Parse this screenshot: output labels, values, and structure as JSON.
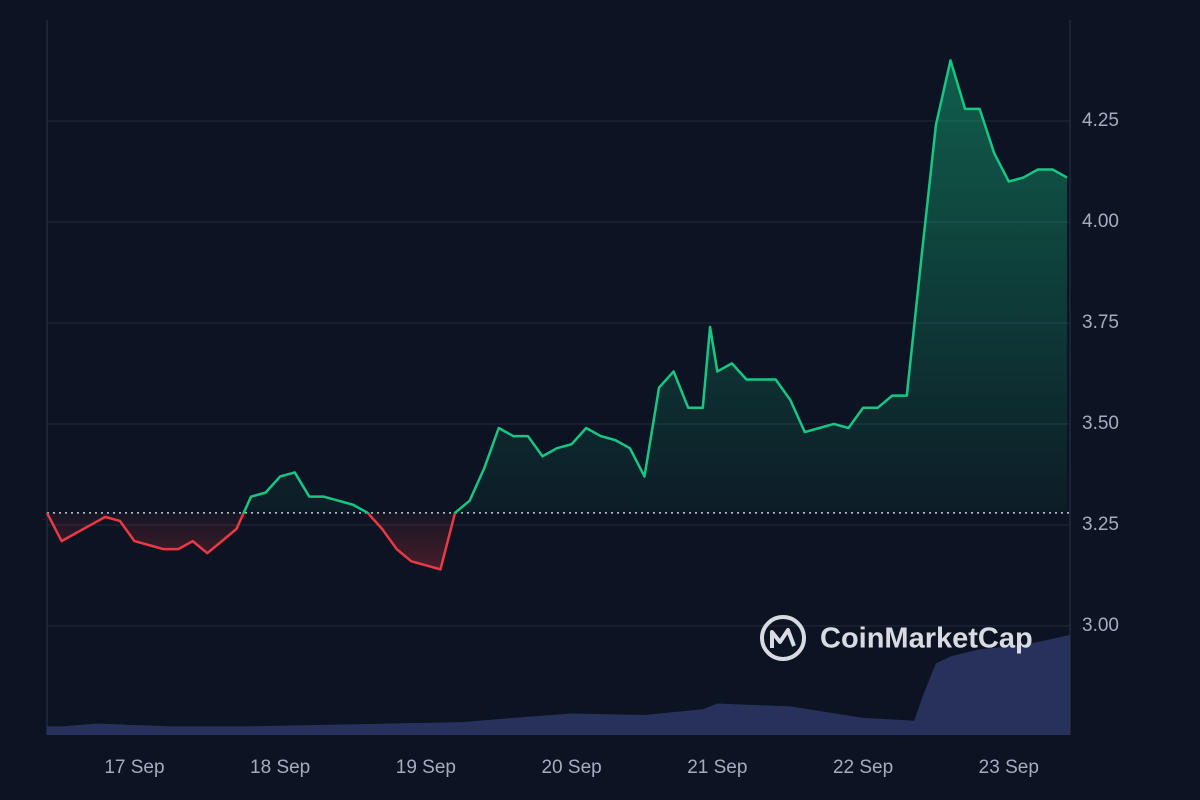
{
  "chart_data": {
    "type": "line",
    "x": [
      16.4,
      16.5,
      16.6,
      16.7,
      16.8,
      16.9,
      17.0,
      17.1,
      17.2,
      17.3,
      17.4,
      17.5,
      17.6,
      17.7,
      17.8,
      17.9,
      18.0,
      18.1,
      18.2,
      18.3,
      18.4,
      18.5,
      18.6,
      18.7,
      18.8,
      18.9,
      19.0,
      19.1,
      19.2,
      19.3,
      19.4,
      19.5,
      19.6,
      19.7,
      19.8,
      19.9,
      20.0,
      20.1,
      20.2,
      20.3,
      20.4,
      20.5,
      20.6,
      20.7,
      20.8,
      20.9,
      20.95,
      21.0,
      21.1,
      21.2,
      21.3,
      21.4,
      21.5,
      21.6,
      21.7,
      21.8,
      21.9,
      22.0,
      22.1,
      22.2,
      22.3,
      22.4,
      22.5,
      22.6,
      22.7,
      22.8,
      22.9,
      23.0,
      23.1,
      23.2,
      23.3,
      23.4
    ],
    "series": [
      {
        "values": [
          3.28,
          3.21,
          3.23,
          3.25,
          3.27,
          3.26,
          3.21,
          3.2,
          3.19,
          3.19,
          3.21,
          3.18,
          3.21,
          3.24,
          3.32,
          3.33,
          3.37,
          3.38,
          3.32,
          3.32,
          3.31,
          3.3,
          3.28,
          3.24,
          3.19,
          3.16,
          3.15,
          3.14,
          3.28,
          3.31,
          3.39,
          3.49,
          3.47,
          3.47,
          3.42,
          3.44,
          3.45,
          3.49,
          3.47,
          3.46,
          3.44,
          3.37,
          3.59,
          3.63,
          3.54,
          3.54,
          3.74,
          3.63,
          3.65,
          3.61,
          3.61,
          3.61,
          3.56,
          3.48,
          3.49,
          3.5,
          3.49,
          3.54,
          3.54,
          3.57,
          3.57,
          3.91,
          4.24,
          4.4,
          4.28,
          4.28,
          4.17,
          4.1,
          4.11,
          4.13,
          4.13,
          4.11
        ],
        "up_color": "#16c784",
        "down_color": "#ea3943"
      }
    ],
    "baseline": 3.28,
    "volume": {
      "x": [
        16.4,
        16.5,
        16.75,
        17.25,
        17.75,
        18.25,
        18.75,
        19.25,
        19.6,
        20.0,
        20.5,
        20.9,
        21.0,
        21.5,
        22.0,
        22.35,
        22.42,
        22.5,
        22.6,
        22.8,
        23.0,
        23.2,
        23.42
      ],
      "values": [
        6,
        6,
        8,
        6,
        6,
        7,
        8,
        9,
        12,
        15,
        14,
        18,
        22,
        20,
        12,
        10,
        30,
        50,
        55,
        60,
        62,
        65,
        70
      ],
      "ylim": [
        0,
        100
      ],
      "color": "#2a3563"
    },
    "xlim": [
      16.4,
      23.42
    ],
    "xticks": [
      {
        "value": 17,
        "label": "17 Sep"
      },
      {
        "value": 18,
        "label": "18 Sep"
      },
      {
        "value": 19,
        "label": "19 Sep"
      },
      {
        "value": 20,
        "label": "20 Sep"
      },
      {
        "value": 21,
        "label": "21 Sep"
      },
      {
        "value": 22,
        "label": "22 Sep"
      },
      {
        "value": 23,
        "label": "23 Sep"
      }
    ],
    "ylim": [
      2.73,
      4.5
    ],
    "yticks": [
      {
        "value": 3,
        "label": "3.00"
      },
      {
        "value": 3.25,
        "label": "3.25"
      },
      {
        "value": 3.5,
        "label": "3.50"
      },
      {
        "value": 3.75,
        "label": "3.75"
      },
      {
        "value": 4,
        "label": "4.00"
      },
      {
        "value": 4.25,
        "label": "4.25"
      }
    ],
    "grid": true,
    "watermark": "CoinMarketCap"
  }
}
